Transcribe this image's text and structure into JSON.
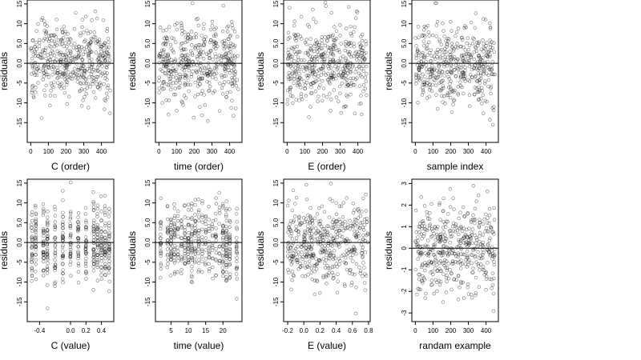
{
  "chart_data": [
    {
      "type": "scatter",
      "id": "c-order",
      "xlabel": "C (order)",
      "ylabel": "residuals",
      "xlim": [
        -20,
        470
      ],
      "ylim": [
        -20,
        16
      ],
      "xticks": [
        0,
        100,
        200,
        300,
        400
      ],
      "xtick_labels": [
        "0",
        "100",
        "200",
        "300",
        "400"
      ],
      "yticks": [
        -15,
        -10,
        -5,
        0,
        5,
        10,
        15
      ],
      "ytick_labels": [
        "-15",
        "-10",
        "-5",
        "0.0",
        "5.0",
        "10",
        "15"
      ],
      "hline": 0,
      "n_points": 450,
      "x_range": [
        0,
        450
      ],
      "y_mean": 0,
      "y_sd": 5,
      "marker": "open-circle",
      "marker_color": "#000000"
    },
    {
      "type": "scatter",
      "id": "time-order",
      "xlabel": "time (order)",
      "ylabel": "residuals",
      "xlim": [
        -20,
        470
      ],
      "ylim": [
        -20,
        16
      ],
      "xticks": [
        0,
        100,
        200,
        300,
        400
      ],
      "xtick_labels": [
        "0",
        "100",
        "200",
        "300",
        "400"
      ],
      "yticks": [
        -15,
        -10,
        -5,
        0,
        5,
        10,
        15
      ],
      "ytick_labels": [
        "-15",
        "-10",
        "-5",
        "0.0",
        "5.0",
        "10",
        "15"
      ],
      "hline": 0,
      "n_points": 450,
      "x_range": [
        0,
        450
      ],
      "y_mean": 0,
      "y_sd": 5,
      "marker": "open-circle",
      "marker_color": "#000000"
    },
    {
      "type": "scatter",
      "id": "e-order",
      "xlabel": "E (order)",
      "ylabel": "residuals",
      "xlim": [
        -20,
        470
      ],
      "ylim": [
        -20,
        16
      ],
      "xticks": [
        0,
        100,
        200,
        300,
        400
      ],
      "xtick_labels": [
        "0",
        "100",
        "200",
        "300",
        "400"
      ],
      "yticks": [
        -15,
        -10,
        -5,
        0,
        5,
        10,
        15
      ],
      "ytick_labels": [
        "-15",
        "-10",
        "-5",
        "0.0",
        "5.0",
        "10",
        "15"
      ],
      "hline": 0,
      "n_points": 450,
      "x_range": [
        0,
        450
      ],
      "y_mean": 0,
      "y_sd": 5,
      "marker": "open-circle",
      "marker_color": "#000000"
    },
    {
      "type": "scatter",
      "id": "sample-index",
      "xlabel": "sample index",
      "ylabel": "residuals",
      "xlim": [
        -20,
        470
      ],
      "ylim": [
        -20,
        16
      ],
      "xticks": [
        0,
        100,
        200,
        300,
        400
      ],
      "xtick_labels": [
        "0",
        "100",
        "200",
        "300",
        "400"
      ],
      "yticks": [
        -15,
        -10,
        -5,
        0,
        5,
        10,
        15
      ],
      "ytick_labels": [
        "-15",
        "-10",
        "-5",
        "0.0",
        "5.0",
        "10",
        "15"
      ],
      "hline": 0,
      "n_points": 450,
      "x_range": [
        0,
        450
      ],
      "y_mean": 0,
      "y_sd": 5,
      "marker": "open-circle",
      "marker_color": "#000000"
    },
    {
      "type": "scatter",
      "id": "c-value",
      "xlabel": "C (value)",
      "ylabel": "residuals",
      "xlim": [
        -0.56,
        0.56
      ],
      "ylim": [
        -20,
        16
      ],
      "xticks": [
        -0.4,
        0,
        0.2,
        0.4
      ],
      "xtick_labels": [
        "-0.4",
        "0.0",
        "0.2",
        "0.4"
      ],
      "yticks": [
        -15,
        -10,
        -5,
        0,
        5,
        10,
        15
      ],
      "ytick_labels": [
        "-15",
        "-10",
        "-5",
        "0.0",
        "5.0",
        "10",
        "15"
      ],
      "hline": 0,
      "n_points": 450,
      "x_levels": [
        -0.5,
        -0.45,
        -0.35,
        -0.3,
        -0.2,
        -0.1,
        0,
        0.1,
        0.2,
        0.3,
        0.35,
        0.4,
        0.45,
        0.5
      ],
      "y_mean": 0,
      "y_sd": 5,
      "marker": "open-circle",
      "marker_color": "#000000"
    },
    {
      "type": "scatter",
      "id": "time-value",
      "xlabel": "time (value)",
      "ylabel": "residuals",
      "xlim": [
        0.5,
        25.5
      ],
      "ylim": [
        -20,
        16
      ],
      "xticks": [
        5,
        10,
        15,
        20
      ],
      "xtick_labels": [
        "5",
        "10",
        "15",
        "20"
      ],
      "yticks": [
        -15,
        -10,
        -5,
        0,
        5,
        10,
        15
      ],
      "ytick_labels": [
        "-15",
        "-10",
        "-5",
        "0.0",
        "5.0",
        "10",
        "15"
      ],
      "hline": 0,
      "n_points": 450,
      "x_levels": [
        2,
        4,
        5,
        6,
        7,
        8,
        9,
        10,
        11,
        12,
        13,
        14,
        15,
        16,
        17,
        18,
        19,
        20,
        21,
        22,
        24
      ],
      "y_mean": 0,
      "y_sd": 5,
      "marker": "open-circle",
      "marker_color": "#000000"
    },
    {
      "type": "scatter",
      "id": "e-value",
      "xlabel": "E (value)",
      "ylabel": "residuals",
      "xlim": [
        -0.25,
        0.82
      ],
      "ylim": [
        -20,
        16
      ],
      "xticks": [
        -0.2,
        0,
        0.2,
        0.4,
        0.6,
        0.8
      ],
      "xtick_labels": [
        "-0.2",
        "0.0",
        "0.2",
        "0.4",
        "0.6",
        "0.8"
      ],
      "yticks": [
        -15,
        -10,
        -5,
        0,
        5,
        10,
        15
      ],
      "ytick_labels": [
        "-15",
        "-10",
        "-5",
        "0.0",
        "5.0",
        "10",
        "15"
      ],
      "hline": 0,
      "n_points": 450,
      "x_range": [
        -0.2,
        0.8
      ],
      "y_mean": 0,
      "y_sd": 5,
      "marker": "open-circle",
      "marker_color": "#000000"
    },
    {
      "type": "scatter",
      "id": "random-example",
      "xlabel": "randam example",
      "ylabel": "residuals",
      "xlim": [
        -20,
        470
      ],
      "ylim": [
        -3.4,
        3.2
      ],
      "xticks": [
        0,
        100,
        200,
        300,
        400
      ],
      "xtick_labels": [
        "0",
        "100",
        "200",
        "300",
        "400"
      ],
      "yticks": [
        -3,
        -2,
        -1,
        0,
        1,
        2,
        3
      ],
      "ytick_labels": [
        "-3",
        "-2",
        "-1",
        "0",
        "1",
        "2",
        "3"
      ],
      "hline": 0,
      "n_points": 450,
      "x_range": [
        0,
        450
      ],
      "y_mean": 0,
      "y_sd": 1,
      "marker": "open-circle",
      "marker_color": "#000000"
    }
  ]
}
